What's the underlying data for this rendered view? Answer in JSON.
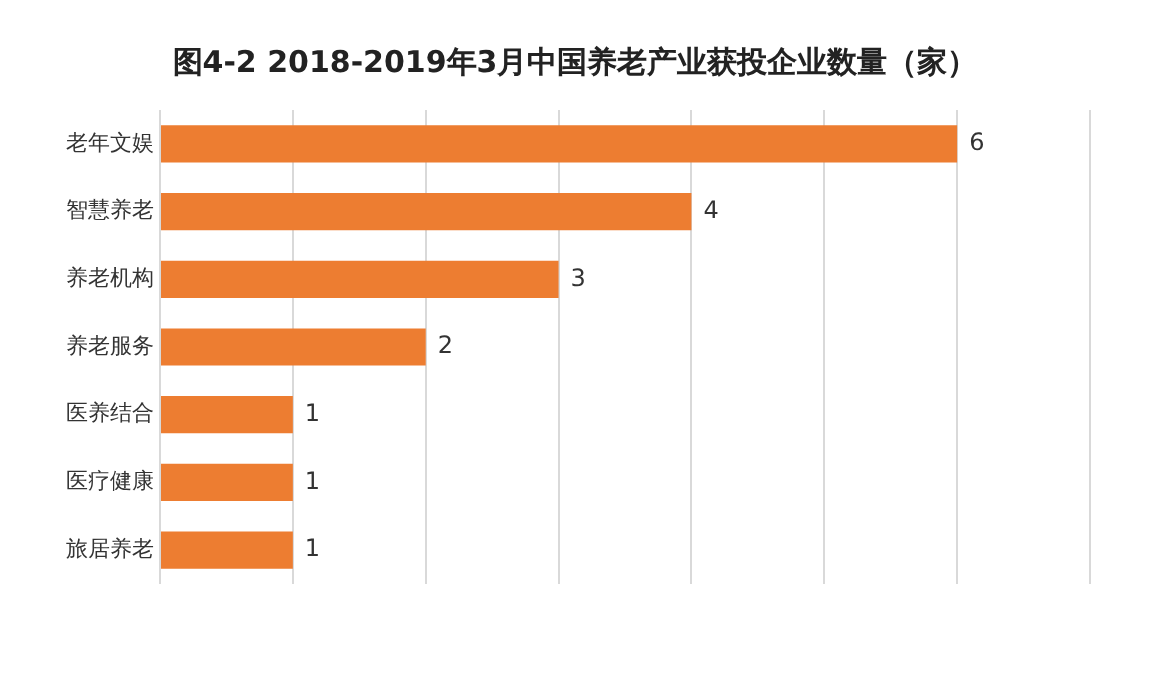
{
  "chart_data": {
    "type": "bar",
    "orientation": "horizontal",
    "title": "图4-2 2018-2019年3月中国养老产业获投企业数量（家）",
    "categories": [
      "老年文娱",
      "智慧养老",
      "养老机构",
      "养老服务",
      "医养结合",
      "医疗健康",
      "旅居养老"
    ],
    "values": [
      6,
      4,
      3,
      2,
      1,
      1,
      1
    ],
    "color": "#ed7d31",
    "xlim": [
      0,
      7
    ],
    "xticks": [
      {
        "value": 0,
        "label": null
      },
      {
        "value": 1,
        "label": null
      },
      {
        "value": 2,
        "label": null
      },
      {
        "value": 3,
        "label": null
      },
      {
        "value": 4,
        "label": null
      },
      {
        "value": 5,
        "label": null
      },
      {
        "value": 6,
        "label": null
      },
      {
        "value": 7,
        "label": null
      }
    ],
    "grid": "x",
    "tick_labels": "y",
    "data_labels": true,
    "legend": false
  }
}
